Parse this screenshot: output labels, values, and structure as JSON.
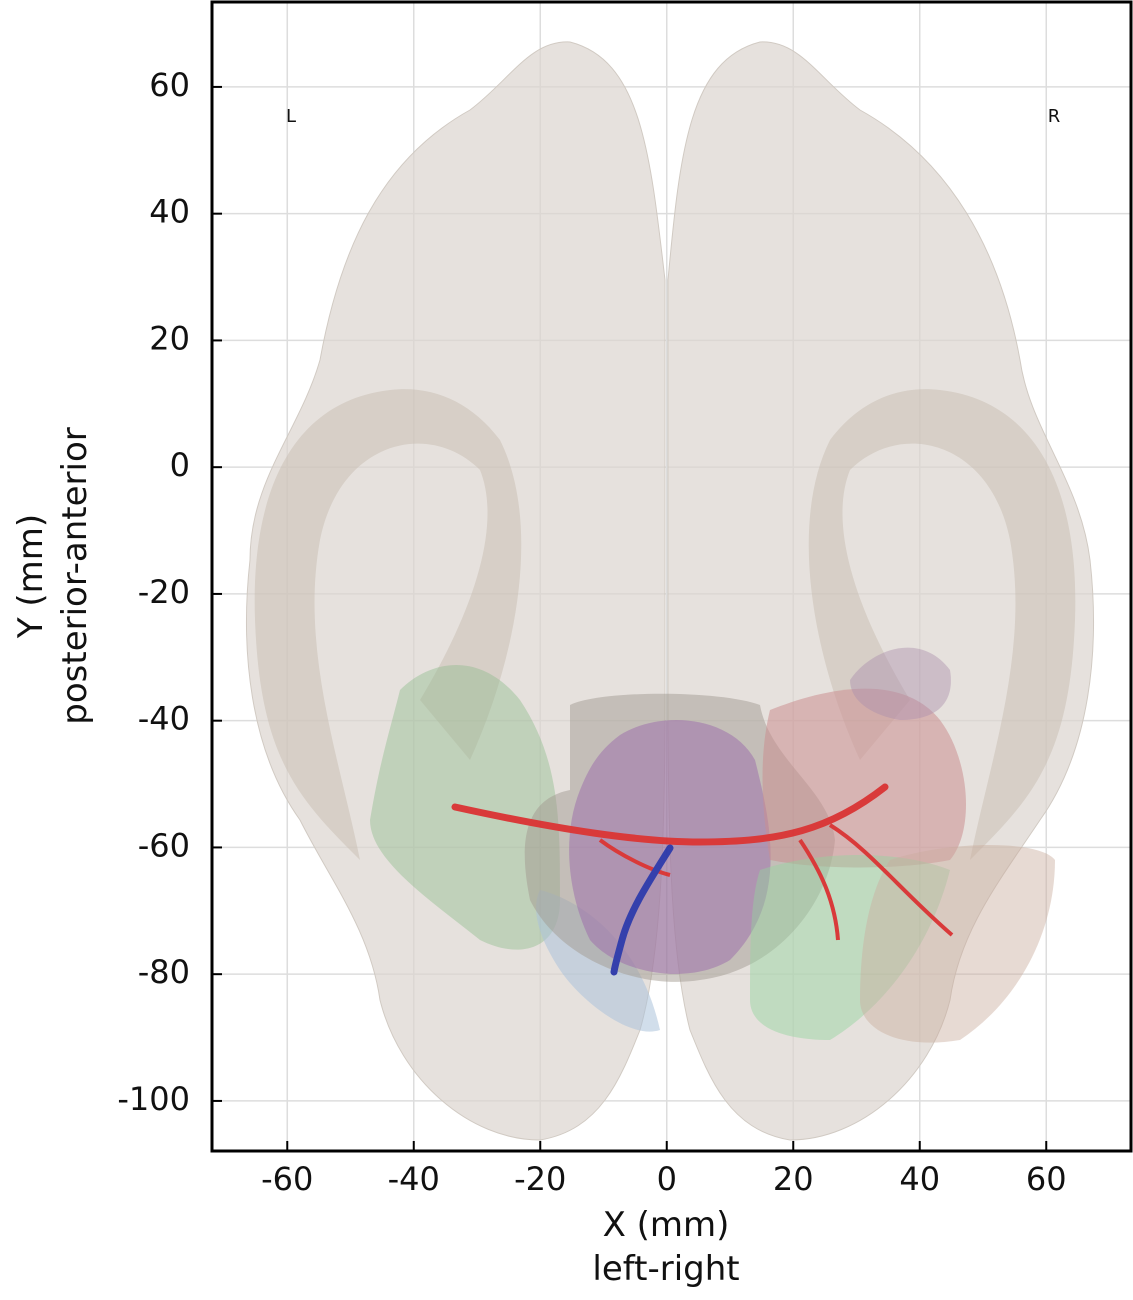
{
  "chart_data": {
    "type": "anatomy-plot",
    "xlabel": [
      "X (mm)",
      "left-right"
    ],
    "ylabel": [
      "Y (mm)",
      "posterior-anterior"
    ],
    "xlim": [
      -71.9,
      73.4
    ],
    "ylim": [
      -107.9,
      73.4
    ],
    "xticks": [
      -60,
      -40,
      -20,
      0,
      20,
      40,
      60
    ],
    "yticks": [
      -100,
      -80,
      -60,
      -40,
      -20,
      0,
      20,
      40,
      60
    ],
    "grid": true,
    "annotations": [
      "L",
      "R"
    ]
  }
}
